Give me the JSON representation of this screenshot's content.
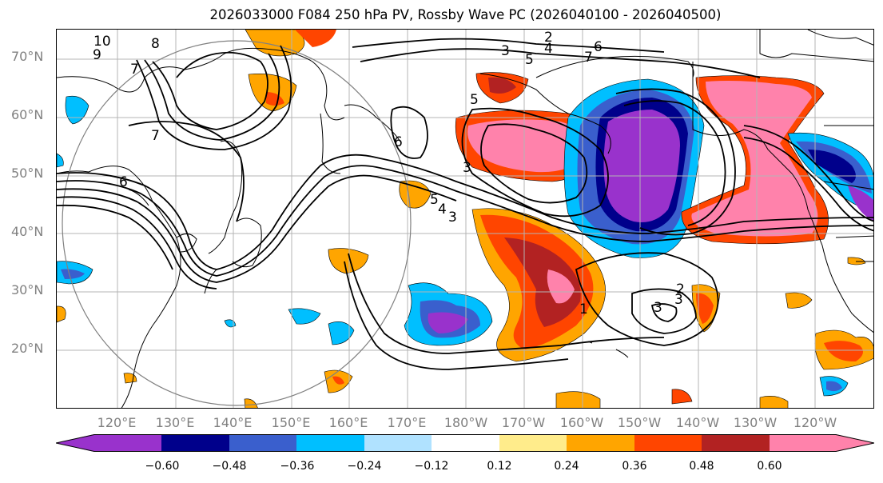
{
  "title": "2026033000 F084 250 hPa PV, Rossby Wave PC (2026040100 - 2026040500)",
  "lat_labels": [
    "70°N",
    "60°N",
    "50°N",
    "40°N",
    "30°N",
    "20°N"
  ],
  "lon_labels": [
    "120°E",
    "130°E",
    "140°E",
    "150°E",
    "160°E",
    "170°E",
    "180°W",
    "170°W",
    "160°W",
    "150°W",
    "140°W",
    "130°W",
    "120°W"
  ],
  "contour_labels": [
    "10",
    "9",
    "8",
    "7",
    "2",
    "3",
    "5",
    "4",
    "6",
    "7",
    "7",
    "6",
    "5",
    "3",
    "6",
    "5",
    "4",
    "3",
    "3",
    "3",
    "1",
    "2"
  ],
  "colorbar": {
    "ticks": [
      "−0.60",
      "−0.48",
      "−0.36",
      "−0.24",
      "−0.12",
      "0.12",
      "0.24",
      "0.36",
      "0.48",
      "0.60"
    ],
    "colors": [
      "#9932CC",
      "#00008B",
      "#3A5FCD",
      "#00BFFF",
      "#B0E2FF",
      "#FFFFFF",
      "#FFEC8B",
      "#FFA500",
      "#FF4500",
      "#B22222",
      "#FF82AB"
    ]
  },
  "colors": {
    "gridline": "#b4b4b4",
    "label_gray": "#808080",
    "circle": "#808080"
  }
}
